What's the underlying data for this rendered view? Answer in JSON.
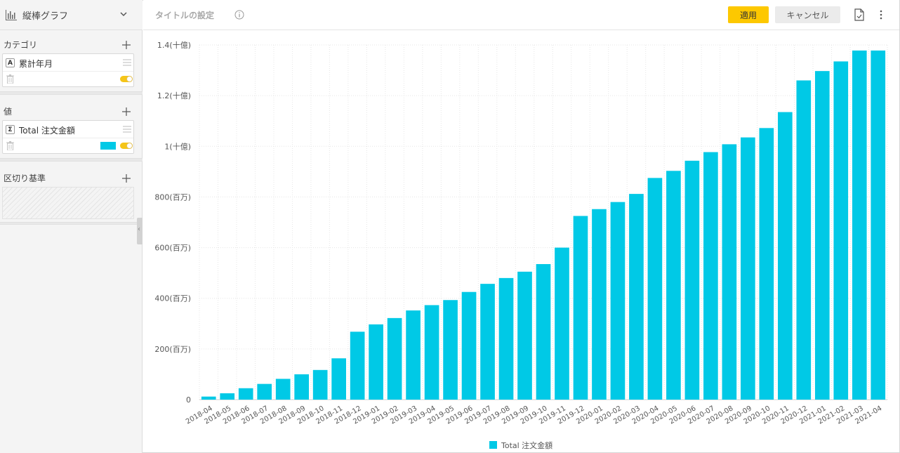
{
  "sidebar": {
    "chart_type_label": "縦棒グラフ",
    "category": {
      "title": "カテゴリ",
      "field_type": "A",
      "field_name": "累計年月"
    },
    "value": {
      "title": "値",
      "field_type": "Σ",
      "field_name": "Total 注文金額",
      "color": "#00c9e6"
    },
    "breakdown": {
      "title": "区切り基準"
    }
  },
  "header": {
    "title_placeholder": "タイトルの設定",
    "apply_label": "適用",
    "cancel_label": "キャンセル"
  },
  "chart_data": {
    "type": "bar",
    "categories": [
      "2018-04",
      "2018-05",
      "2018-06",
      "2018-07",
      "2018-08",
      "2018-09",
      "2018-10",
      "2018-11",
      "2018-12",
      "2019-01",
      "2019-02",
      "2019-03",
      "2019-04",
      "2019-05",
      "2019-06",
      "2019-07",
      "2019-08",
      "2019-09",
      "2019-10",
      "2019-11",
      "2019-12",
      "2020-01",
      "2020-02",
      "2020-03",
      "2020-04",
      "2020-05",
      "2020-06",
      "2020-07",
      "2020-08",
      "2020-09",
      "2020-10",
      "2020-11",
      "2020-12",
      "2021-01",
      "2021-02",
      "2021-03",
      "2021-04"
    ],
    "series": [
      {
        "name": "Total 注文金額",
        "color": "#00c9e6",
        "values": [
          12000000,
          25000000,
          45000000,
          62000000,
          82000000,
          100000000,
          117000000,
          163000000,
          268000000,
          297000000,
          322000000,
          352000000,
          373000000,
          393000000,
          425000000,
          457000000,
          480000000,
          505000000,
          535000000,
          600000000,
          725000000,
          752000000,
          780000000,
          812000000,
          875000000,
          903000000,
          943000000,
          977000000,
          1008000000,
          1035000000,
          1072000000,
          1135000000,
          1260000000,
          1297000000,
          1335000000,
          1378000000,
          1378000000
        ]
      }
    ],
    "ylim": [
      0,
      1400000000
    ],
    "yticks": [
      0,
      200000000,
      400000000,
      600000000,
      800000000,
      1000000000,
      1200000000,
      1400000000
    ],
    "ytick_labels": [
      "0",
      "200(百万)",
      "400(百万)",
      "600(百万)",
      "800(百万)",
      "1(十億)",
      "1.2(十億)",
      "1.4(十億)"
    ],
    "grid": true,
    "legend_position": "bottom-center",
    "xlabel": "",
    "ylabel": ""
  }
}
